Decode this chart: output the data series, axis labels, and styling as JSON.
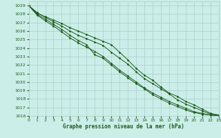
{
  "bg_color": "#cceee8",
  "grid_color": "#aacccc",
  "line_color": "#1a5c1a",
  "marker_color": "#1a5c1a",
  "xlabel": "Graphe pression niveau de la mer (hPa)",
  "ylim": [
    1016,
    1029.5
  ],
  "xlim": [
    0,
    23
  ],
  "yticks": [
    1016,
    1017,
    1018,
    1019,
    1020,
    1021,
    1022,
    1023,
    1024,
    1025,
    1026,
    1027,
    1028,
    1029
  ],
  "xticks": [
    0,
    1,
    2,
    3,
    4,
    5,
    6,
    7,
    8,
    9,
    10,
    11,
    12,
    13,
    14,
    15,
    16,
    17,
    18,
    19,
    20,
    21,
    22,
    23
  ],
  "series": [
    [
      1029.0,
      1028.1,
      1027.7,
      1027.3,
      1026.9,
      1026.4,
      1026.0,
      1025.6,
      1025.2,
      1024.8,
      1024.4,
      1023.5,
      1022.6,
      1021.6,
      1020.8,
      1020.2,
      1019.4,
      1018.7,
      1018.3,
      1017.7,
      1017.3,
      1016.8,
      1016.3,
      1016.1
    ],
    [
      1029.0,
      1028.2,
      1027.6,
      1027.1,
      1026.6,
      1026.0,
      1025.5,
      1025.1,
      1024.7,
      1024.3,
      1023.5,
      1022.8,
      1022.1,
      1021.2,
      1020.4,
      1019.8,
      1019.2,
      1018.6,
      1017.9,
      1017.4,
      1017.0,
      1016.6,
      1016.2,
      1016.1
    ],
    [
      1029.0,
      1028.0,
      1027.4,
      1026.8,
      1026.2,
      1025.5,
      1024.9,
      1024.4,
      1023.2,
      1022.8,
      1022.0,
      1021.2,
      1020.5,
      1019.8,
      1019.2,
      1018.5,
      1018.0,
      1017.5,
      1017.1,
      1016.7,
      1016.4,
      1016.2,
      1016.1,
      1016.0
    ],
    [
      1029.0,
      1027.9,
      1027.2,
      1026.6,
      1025.9,
      1025.2,
      1024.6,
      1024.1,
      1023.6,
      1023.0,
      1022.2,
      1021.4,
      1020.7,
      1020.0,
      1019.3,
      1018.7,
      1018.2,
      1017.7,
      1017.3,
      1016.9,
      1016.5,
      1016.3,
      1016.1,
      1016.0
    ]
  ]
}
